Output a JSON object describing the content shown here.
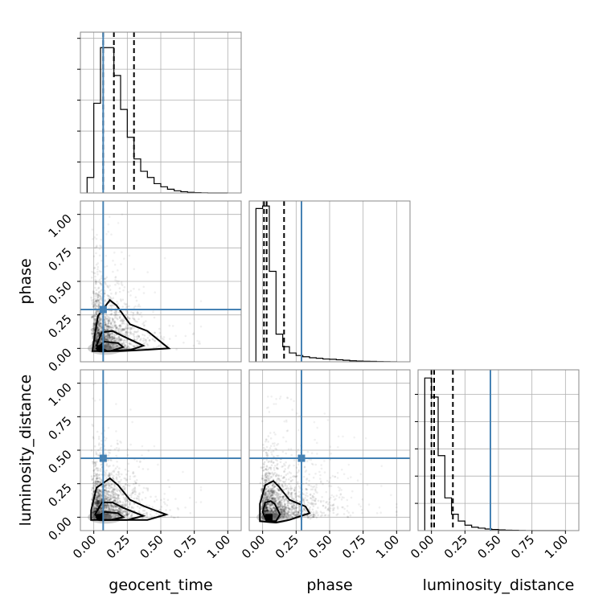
{
  "chart_data": {
    "type": "corner",
    "parameters": [
      "geocent_time",
      "phase",
      "luminosity_distance"
    ],
    "axis_labels": {
      "geocent_time": "geocent_time",
      "phase": "phase",
      "luminosity_distance": "luminosity_distance"
    },
    "range": [
      -0.1,
      1.1
    ],
    "ticks": [
      0.0,
      0.25,
      0.5,
      0.75,
      1.0
    ],
    "tick_labels": [
      "0.00",
      "0.25",
      "0.50",
      "0.75",
      "1.00"
    ],
    "grid": true,
    "truth_color": "#4682b4",
    "truths": {
      "geocent_time": 0.07,
      "phase": 0.29,
      "luminosity_distance": 0.44
    },
    "quantiles": {
      "geocent_time": [
        0.07,
        0.15,
        0.3
      ],
      "phase": [
        0.01,
        0.03,
        0.16
      ],
      "luminosity_distance": [
        0.0,
        0.02,
        0.16
      ]
    },
    "histograms": {
      "geocent_time": {
        "bin_edges": [
          -0.05,
          0.0,
          0.05,
          0.1,
          0.15,
          0.2,
          0.25,
          0.3,
          0.35,
          0.4,
          0.45,
          0.5,
          0.55,
          0.6,
          0.65,
          0.7,
          0.75,
          0.8,
          0.85,
          0.9,
          0.95,
          1.0
        ],
        "counts": [
          5,
          29,
          47,
          47,
          38,
          27,
          18,
          11,
          7,
          5,
          3,
          2,
          1.2,
          0.7,
          0.4,
          0.2,
          0.1,
          0.05,
          0.0,
          0.0,
          0.0
        ]
      },
      "phase": {
        "bin_edges": [
          -0.05,
          0.0,
          0.05,
          0.1,
          0.15,
          0.2,
          0.25,
          0.3,
          0.35,
          0.4,
          0.45,
          0.5,
          0.55,
          0.6,
          0.65,
          0.7,
          0.75,
          0.8,
          0.85,
          0.9,
          0.95,
          1.0
        ],
        "counts": [
          61,
          62,
          36,
          11,
          6,
          3.5,
          2.5,
          2,
          1.6,
          1.4,
          1.1,
          1,
          0.8,
          0.6,
          0.4,
          0.3,
          0.2,
          0.15,
          0.1,
          0.05,
          0.02
        ]
      },
      "luminosity_distance": {
        "bin_edges": [
          -0.05,
          0.0,
          0.05,
          0.1,
          0.15,
          0.2,
          0.25,
          0.3,
          0.35,
          0.4,
          0.45,
          0.5,
          0.55,
          0.6,
          0.65,
          0.7,
          0.75,
          0.8,
          0.85,
          0.9,
          0.95,
          1.0
        ],
        "counts": [
          112,
          98,
          55,
          24,
          12,
          7,
          4,
          2.5,
          1.8,
          1.2,
          0.8,
          0.5,
          0.3,
          0.2,
          0.1,
          0.05,
          0.02,
          0.0,
          0.0,
          0.0,
          0.0
        ]
      }
    },
    "hist_ylim": {
      "geocent_time": [
        0,
        52
      ],
      "phase": [
        0,
        64
      ],
      "luminosity_distance": [
        0,
        118
      ]
    },
    "hist_y_ticks": {
      "geocent_time": [
        10,
        20,
        30,
        40,
        50
      ],
      "phase": [],
      "luminosity_distance": [
        20,
        40,
        60,
        80,
        100
      ]
    },
    "contours": {
      "phase_vs_geocent_time": [
        [
          [
            0.0,
            0.05
          ],
          [
            0.03,
            0.24
          ],
          [
            0.12,
            0.36
          ],
          [
            0.17,
            0.32
          ],
          [
            0.27,
            0.18
          ],
          [
            0.4,
            0.13
          ],
          [
            0.56,
            0.0
          ],
          [
            0.4,
            -0.01
          ],
          [
            0.2,
            -0.02
          ],
          [
            -0.01,
            -0.02
          ],
          [
            0.0,
            0.05
          ]
        ],
        [
          [
            0.02,
            0.02
          ],
          [
            0.06,
            0.12
          ],
          [
            0.14,
            0.13
          ],
          [
            0.22,
            0.09
          ],
          [
            0.37,
            0.02
          ],
          [
            0.28,
            -0.01
          ],
          [
            0.1,
            -0.02
          ],
          [
            0.02,
            0.02
          ]
        ],
        [
          [
            0.02,
            0.0
          ],
          [
            0.08,
            0.05
          ],
          [
            0.18,
            0.04
          ],
          [
            0.22,
            0.01
          ],
          [
            0.12,
            -0.02
          ],
          [
            0.04,
            -0.02
          ],
          [
            0.02,
            0.0
          ]
        ]
      ],
      "luminosity_distance_vs_geocent_time": [
        [
          [
            -0.02,
            0.05
          ],
          [
            0.02,
            0.22
          ],
          [
            0.12,
            0.29
          ],
          [
            0.18,
            0.24
          ],
          [
            0.27,
            0.13
          ],
          [
            0.38,
            0.08
          ],
          [
            0.54,
            0.02
          ],
          [
            0.4,
            -0.02
          ],
          [
            0.2,
            -0.02
          ],
          [
            -0.02,
            -0.02
          ],
          [
            -0.02,
            0.05
          ]
        ],
        [
          [
            0.01,
            0.02
          ],
          [
            0.06,
            0.11
          ],
          [
            0.14,
            0.11
          ],
          [
            0.22,
            0.07
          ],
          [
            0.37,
            0.01
          ],
          [
            0.25,
            -0.02
          ],
          [
            0.05,
            -0.02
          ],
          [
            0.01,
            0.02
          ]
        ],
        [
          [
            0.02,
            0.0
          ],
          [
            0.08,
            0.04
          ],
          [
            0.18,
            0.03
          ],
          [
            0.22,
            0.0
          ],
          [
            0.12,
            -0.02
          ],
          [
            0.04,
            -0.02
          ],
          [
            0.02,
            0.0
          ]
        ]
      ],
      "luminosity_distance_vs_phase": [
        [
          [
            -0.02,
            0.1
          ],
          [
            0.02,
            0.24
          ],
          [
            0.08,
            0.27
          ],
          [
            0.12,
            0.23
          ],
          [
            0.2,
            0.13
          ],
          [
            0.32,
            0.08
          ],
          [
            0.35,
            0.03
          ],
          [
            0.2,
            -0.02
          ],
          [
            0.1,
            -0.04
          ],
          [
            -0.02,
            -0.03
          ],
          [
            -0.02,
            0.1
          ]
        ],
        [
          [
            0.0,
            0.04
          ],
          [
            0.02,
            0.11
          ],
          [
            0.06,
            0.12
          ],
          [
            0.09,
            0.1
          ],
          [
            0.13,
            0.02
          ],
          [
            0.1,
            -0.03
          ],
          [
            0.03,
            -0.03
          ],
          [
            0.0,
            0.04
          ]
        ]
      ]
    },
    "scatter_density": {
      "phase_vs_geocent_time": {
        "x_scale": 0.12,
        "y_scale": 0.17,
        "x_max": 0.8,
        "y_max": 1.0
      },
      "luminosity_distance_vs_geocent_time": {
        "x_scale": 0.12,
        "y_scale": 0.14,
        "x_max": 0.8,
        "y_max": 1.0
      },
      "luminosity_distance_vs_phase": {
        "x_scale": 0.18,
        "y_scale": 0.16,
        "x_max": 1.0,
        "y_max": 0.9
      }
    }
  }
}
